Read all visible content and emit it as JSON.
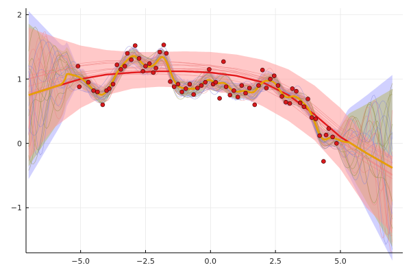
{
  "chart_data": {
    "type": "line",
    "title": "",
    "xlabel": "",
    "ylabel": "",
    "xlim": [
      -7.1,
      7.4
    ],
    "ylim": [
      -1.7,
      2.1
    ],
    "grid": true,
    "legend": "none",
    "x_ticks": [
      {
        "value": -5.0,
        "label": "−5.0"
      },
      {
        "value": -2.5,
        "label": "−2.5"
      },
      {
        "value": 0.0,
        "label": "0.0"
      },
      {
        "value": 2.5,
        "label": "2.5"
      },
      {
        "value": 5.0,
        "label": "5.0"
      }
    ],
    "y_ticks": [
      {
        "value": -1,
        "label": "−1"
      },
      {
        "value": 0,
        "label": "0"
      },
      {
        "value": 1,
        "label": "1"
      },
      {
        "value": 2,
        "label": "2"
      }
    ],
    "colors": {
      "red_band": "#ff9a9a",
      "blue_band": "#8c8cff",
      "olive_band": "#b3b34d",
      "red_line": "#e31a1c",
      "gold_line": "#e6a000",
      "points": "#d7191c",
      "sample_red": "#f08080",
      "sample_olive": "#8e8e3a",
      "sample_blue": "#7f7fd8"
    },
    "bands": [
      {
        "x": [
          -7.0,
          -6.0,
          -5.0,
          -4.0,
          -3.0,
          -2.0,
          -1.0,
          0.0,
          1.0,
          2.0,
          3.0,
          4.0,
          5.0,
          6.0,
          7.0
        ],
        "upper": [
          1.8,
          1.65,
          1.52,
          1.45,
          1.42,
          1.42,
          1.43,
          1.42,
          1.38,
          1.3,
          1.15,
          0.9,
          0.55,
          0.1,
          -0.2
        ],
        "lower": [
          -0.25,
          0.25,
          0.55,
          0.75,
          0.85,
          0.88,
          0.87,
          0.83,
          0.75,
          0.58,
          0.35,
          0.05,
          -0.4,
          -1.0,
          -1.4
        ]
      }
    ],
    "series": [
      {
        "x": [
          -7.0,
          -6.0,
          -5.0,
          -4.0,
          -3.0,
          -2.0,
          -1.0,
          0.0,
          1.0,
          2.0,
          3.0,
          4.0,
          5.0,
          6.0,
          7.0
        ],
        "y": [
          0.75,
          0.88,
          1.0,
          1.07,
          1.1,
          1.12,
          1.12,
          1.1,
          1.05,
          0.95,
          0.75,
          0.45,
          0.1,
          -0.15,
          -0.38
        ]
      }
    ],
    "scatter": {
      "x": [
        -5.1,
        -5.05,
        -4.7,
        -4.5,
        -4.35,
        -4.15,
        -4.0,
        -3.9,
        -3.75,
        -3.6,
        -3.45,
        -3.3,
        -3.2,
        -3.05,
        -2.9,
        -2.75,
        -2.6,
        -2.5,
        -2.35,
        -2.2,
        -2.1,
        -1.95,
        -1.8,
        -1.7,
        -1.55,
        -1.4,
        -1.25,
        -1.1,
        -0.95,
        -0.8,
        -0.65,
        -0.5,
        -0.35,
        -0.2,
        -0.05,
        0.1,
        0.2,
        0.35,
        0.5,
        0.6,
        0.75,
        0.9,
        1.05,
        1.2,
        1.35,
        1.5,
        1.7,
        1.85,
        2.0,
        2.15,
        2.3,
        2.45,
        2.6,
        2.75,
        2.9,
        3.05,
        3.15,
        3.3,
        3.45,
        3.6,
        3.75,
        3.9,
        4.05,
        4.2,
        4.35,
        4.45,
        4.55,
        4.7,
        4.85
      ],
      "y": [
        1.2,
        0.88,
        0.95,
        0.82,
        0.8,
        0.6,
        0.82,
        0.85,
        0.92,
        1.22,
        1.15,
        1.2,
        1.4,
        1.3,
        1.52,
        1.32,
        1.12,
        1.2,
        1.24,
        1.1,
        1.17,
        1.42,
        1.53,
        1.4,
        0.96,
        0.88,
        0.92,
        0.8,
        0.85,
        0.92,
        0.76,
        0.86,
        0.9,
        0.95,
        1.15,
        0.92,
        0.95,
        0.7,
        1.27,
        0.88,
        0.75,
        0.82,
        0.72,
        0.9,
        0.78,
        0.86,
        0.6,
        0.9,
        1.14,
        0.86,
        1.0,
        1.05,
        0.9,
        0.73,
        0.64,
        0.62,
        0.85,
        0.81,
        0.63,
        0.57,
        0.69,
        0.4,
        0.38,
        0.12,
        -0.28,
        0.13,
        0.23,
        0.1,
        0.0
      ]
    }
  }
}
